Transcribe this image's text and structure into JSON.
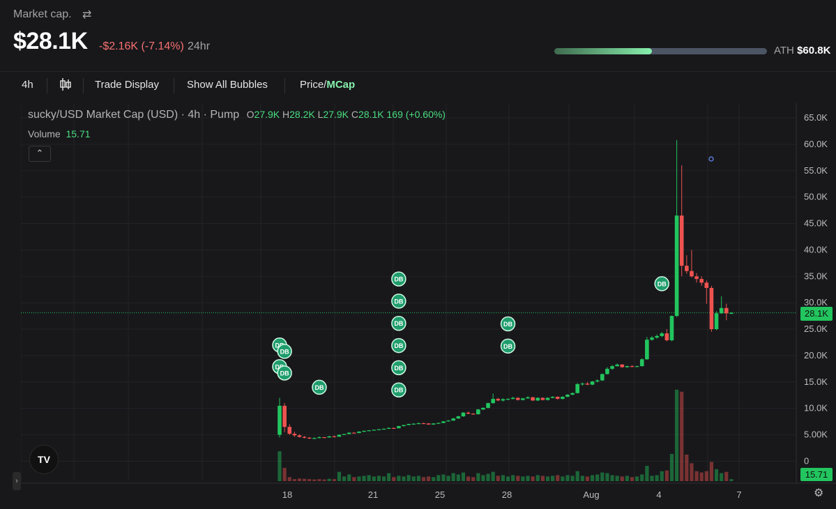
{
  "header": {
    "label": "Market cap.",
    "swap_icon": "swap-arrows-icon",
    "value": "$28.1K",
    "change": "-$2.16K (-7.14%)",
    "period": "24hr",
    "ath_label": "ATH",
    "ath_value": "$60.8K",
    "ath_progress": 0.46
  },
  "toolbar": {
    "interval": "4h",
    "candle_icon": "candlestick-icon",
    "trade_display": "Trade Display",
    "show_bubbles": "Show All Bubbles",
    "price_label": "Price/",
    "mcap_label": "MCap"
  },
  "legend": {
    "symbol": "sucky/USD Market Cap (USD) · 4h · Pump",
    "o_label": "O",
    "o_val": "27.9K",
    "h_label": "H",
    "h_val": "28.2K",
    "l_label": "L",
    "l_val": "27.9K",
    "c_label": "C",
    "c_val": "28.1K",
    "change": "169 (+0.60%)",
    "volume_label": "Volume",
    "volume_val": "15.71"
  },
  "colors": {
    "up": "#22c55e",
    "down": "#ef5350",
    "bubble": "#1f9d6c",
    "background": "#18181b"
  },
  "badges": {
    "price": "28.1K",
    "volume": "15.71"
  },
  "chart_data": {
    "type": "candlestick",
    "ylim": [
      0,
      65000
    ],
    "y_ticks": [
      "65.0K",
      "60.0K",
      "55.0K",
      "50.0K",
      "45.0K",
      "40.0K",
      "35.0K",
      "30.0K",
      "25.0K",
      "20.0K",
      "15.0K",
      "10.0K",
      "5.00K",
      "0"
    ],
    "x_ticks": [
      "18",
      "21",
      "25",
      "28",
      "Aug",
      "4",
      "7"
    ],
    "last_price_line": 28100,
    "candles": [
      [
        0,
        5000,
        12000,
        4500,
        10500
      ],
      [
        1,
        10500,
        11000,
        5500,
        6500
      ],
      [
        2,
        6500,
        7000,
        5000,
        5200
      ],
      [
        3,
        5200,
        5600,
        4600,
        4900
      ],
      [
        4,
        4900,
        5100,
        4500,
        4600
      ],
      [
        5,
        4600,
        4800,
        4300,
        4450
      ],
      [
        6,
        4450,
        4600,
        4200,
        4350
      ],
      [
        7,
        4350,
        4500,
        4200,
        4400
      ],
      [
        8,
        4400,
        4700,
        4300,
        4550
      ],
      [
        9,
        4550,
        4600,
        4400,
        4500
      ],
      [
        10,
        4500,
        4800,
        4450,
        4700
      ],
      [
        11,
        4700,
        4900,
        4600,
        4650
      ],
      [
        12,
        4650,
        5100,
        4600,
        5000
      ],
      [
        13,
        5000,
        5200,
        4950,
        5150
      ],
      [
        14,
        5150,
        5500,
        5100,
        5400
      ],
      [
        15,
        5400,
        5500,
        5300,
        5350
      ],
      [
        16,
        5350,
        5700,
        5300,
        5600
      ],
      [
        17,
        5600,
        5800,
        5500,
        5750
      ],
      [
        18,
        5750,
        5900,
        5700,
        5850
      ],
      [
        19,
        5850,
        6000,
        5800,
        5950
      ],
      [
        20,
        5950,
        6100,
        5900,
        6050
      ],
      [
        21,
        6050,
        6200,
        6000,
        6150
      ],
      [
        22,
        6150,
        6400,
        6100,
        6300
      ],
      [
        23,
        6300,
        6350,
        6200,
        6250
      ],
      [
        24,
        6250,
        6700,
        6200,
        6650
      ],
      [
        25,
        6650,
        6900,
        6600,
        6850
      ],
      [
        26,
        6850,
        7100,
        6800,
        7050
      ],
      [
        27,
        7050,
        7200,
        6950,
        7100
      ],
      [
        28,
        7100,
        7300,
        7000,
        7200
      ],
      [
        29,
        7200,
        7300,
        7100,
        7150
      ],
      [
        30,
        7150,
        7200,
        6900,
        6950
      ],
      [
        31,
        6950,
        7200,
        6900,
        7150
      ],
      [
        32,
        7150,
        7300,
        7100,
        7250
      ],
      [
        33,
        7250,
        7600,
        7200,
        7550
      ],
      [
        34,
        7550,
        7800,
        7500,
        7700
      ],
      [
        35,
        7700,
        8200,
        7650,
        8100
      ],
      [
        36,
        8100,
        8600,
        8000,
        8500
      ],
      [
        37,
        8500,
        9300,
        8400,
        9200
      ],
      [
        38,
        9200,
        9400,
        8900,
        9000
      ],
      [
        39,
        9000,
        9100,
        8800,
        8900
      ],
      [
        40,
        8900,
        9900,
        8850,
        9800
      ],
      [
        41,
        9800,
        10200,
        9700,
        10100
      ],
      [
        42,
        10100,
        11100,
        10000,
        11000
      ],
      [
        43,
        11000,
        12800,
        10900,
        11800
      ],
      [
        44,
        11800,
        12000,
        11400,
        11500
      ],
      [
        45,
        11500,
        11900,
        11300,
        11750
      ],
      [
        46,
        11750,
        11900,
        11600,
        11800
      ],
      [
        47,
        11800,
        12200,
        11700,
        12000
      ],
      [
        48,
        12000,
        12100,
        11500,
        11600
      ],
      [
        49,
        11600,
        12000,
        11500,
        11900
      ],
      [
        50,
        11900,
        12300,
        11800,
        12100
      ],
      [
        51,
        12100,
        12200,
        11400,
        11500
      ],
      [
        52,
        11500,
        12100,
        11400,
        12000
      ],
      [
        53,
        12000,
        12100,
        11500,
        11600
      ],
      [
        54,
        11600,
        12100,
        11500,
        12000
      ],
      [
        55,
        12000,
        12300,
        11900,
        12200
      ],
      [
        56,
        12200,
        12300,
        11700,
        11800
      ],
      [
        57,
        11800,
        12300,
        11700,
        12200
      ],
      [
        58,
        12200,
        12700,
        12100,
        12600
      ],
      [
        59,
        12600,
        13000,
        12500,
        12900
      ],
      [
        60,
        12900,
        14800,
        12800,
        14600
      ],
      [
        61,
        14600,
        14900,
        14300,
        14700
      ],
      [
        62,
        14700,
        15000,
        14400,
        14500
      ],
      [
        63,
        14500,
        15200,
        14400,
        15100
      ],
      [
        64,
        15100,
        15500,
        14900,
        15300
      ],
      [
        65,
        15300,
        16600,
        15200,
        16500
      ],
      [
        66,
        16500,
        17800,
        16400,
        17500
      ],
      [
        67,
        17500,
        18200,
        17300,
        18000
      ],
      [
        68,
        18000,
        18500,
        17900,
        18300
      ],
      [
        69,
        18300,
        18400,
        17700,
        17800
      ],
      [
        70,
        17800,
        18100,
        17700,
        18000
      ],
      [
        71,
        18000,
        18200,
        17800,
        17900
      ],
      [
        72,
        17900,
        18100,
        17800,
        18000
      ],
      [
        73,
        18000,
        19500,
        17900,
        19300
      ],
      [
        74,
        19300,
        23500,
        19200,
        23000
      ],
      [
        75,
        23000,
        23700,
        22800,
        23400
      ],
      [
        76,
        23400,
        24000,
        23200,
        23700
      ],
      [
        77,
        23700,
        24500,
        23500,
        24200
      ],
      [
        78,
        24200,
        25000,
        22700,
        22900
      ],
      [
        79,
        22900,
        27600,
        22700,
        27500
      ],
      [
        80,
        27500,
        60800,
        27300,
        46500
      ],
      [
        81,
        46500,
        56000,
        35000,
        37000
      ],
      [
        82,
        37000,
        39000,
        35500,
        36000
      ],
      [
        83,
        36000,
        40000,
        34800,
        35000
      ],
      [
        84,
        35000,
        35600,
        33800,
        34500
      ],
      [
        85,
        34500,
        35000,
        33200,
        33800
      ],
      [
        86,
        33800,
        34200,
        29800,
        32800
      ],
      [
        87,
        32800,
        33200,
        24500,
        25000
      ],
      [
        88,
        25000,
        28400,
        24800,
        28000
      ],
      [
        89,
        28000,
        31200,
        27900,
        29000
      ],
      [
        90,
        29000,
        29800,
        26700,
        28000
      ],
      [
        91,
        27900,
        28200,
        27900,
        28100
      ]
    ],
    "volumes": [
      [
        0,
        4500,
        1
      ],
      [
        1,
        2000,
        0
      ],
      [
        2,
        600,
        0
      ],
      [
        3,
        300,
        0
      ],
      [
        4,
        400,
        0
      ],
      [
        5,
        350,
        0
      ],
      [
        6,
        300,
        0
      ],
      [
        7,
        250,
        0
      ],
      [
        8,
        300,
        0
      ],
      [
        9,
        250,
        0
      ],
      [
        10,
        350,
        1
      ],
      [
        11,
        300,
        0
      ],
      [
        12,
        1400,
        1
      ],
      [
        13,
        700,
        1
      ],
      [
        14,
        1000,
        1
      ],
      [
        15,
        600,
        0
      ],
      [
        16,
        700,
        1
      ],
      [
        17,
        800,
        1
      ],
      [
        18,
        900,
        1
      ],
      [
        19,
        700,
        1
      ],
      [
        20,
        800,
        1
      ],
      [
        21,
        700,
        1
      ],
      [
        22,
        1200,
        1
      ],
      [
        23,
        600,
        0
      ],
      [
        24,
        800,
        1
      ],
      [
        25,
        700,
        1
      ],
      [
        26,
        900,
        1
      ],
      [
        27,
        700,
        1
      ],
      [
        28,
        800,
        1
      ],
      [
        29,
        600,
        0
      ],
      [
        30,
        700,
        0
      ],
      [
        31,
        600,
        1
      ],
      [
        32,
        900,
        1
      ],
      [
        33,
        1000,
        1
      ],
      [
        34,
        800,
        1
      ],
      [
        35,
        1200,
        1
      ],
      [
        36,
        1000,
        1
      ],
      [
        37,
        1300,
        1
      ],
      [
        38,
        700,
        0
      ],
      [
        39,
        600,
        0
      ],
      [
        40,
        1200,
        1
      ],
      [
        41,
        900,
        1
      ],
      [
        42,
        1100,
        1
      ],
      [
        43,
        1400,
        1
      ],
      [
        44,
        800,
        0
      ],
      [
        45,
        900,
        1
      ],
      [
        46,
        700,
        1
      ],
      [
        47,
        900,
        1
      ],
      [
        48,
        800,
        0
      ],
      [
        49,
        700,
        1
      ],
      [
        50,
        800,
        1
      ],
      [
        51,
        700,
        0
      ],
      [
        52,
        900,
        1
      ],
      [
        53,
        800,
        0
      ],
      [
        54,
        700,
        1
      ],
      [
        55,
        800,
        1
      ],
      [
        56,
        900,
        0
      ],
      [
        57,
        700,
        1
      ],
      [
        58,
        900,
        1
      ],
      [
        59,
        800,
        1
      ],
      [
        60,
        1500,
        1
      ],
      [
        61,
        800,
        1
      ],
      [
        62,
        700,
        0
      ],
      [
        63,
        900,
        1
      ],
      [
        64,
        1000,
        1
      ],
      [
        65,
        1300,
        1
      ],
      [
        66,
        1200,
        1
      ],
      [
        67,
        900,
        1
      ],
      [
        68,
        800,
        1
      ],
      [
        69,
        700,
        0
      ],
      [
        70,
        800,
        1
      ],
      [
        71,
        600,
        0
      ],
      [
        72,
        700,
        1
      ],
      [
        73,
        1000,
        1
      ],
      [
        74,
        2300,
        1
      ],
      [
        75,
        800,
        1
      ],
      [
        76,
        900,
        1
      ],
      [
        77,
        1500,
        1
      ],
      [
        78,
        1600,
        0
      ],
      [
        79,
        4100,
        1
      ],
      [
        80,
        13800,
        1
      ],
      [
        81,
        13500,
        0
      ],
      [
        82,
        4000,
        0
      ],
      [
        83,
        2700,
        0
      ],
      [
        84,
        1500,
        0
      ],
      [
        85,
        1300,
        0
      ],
      [
        86,
        1500,
        0
      ],
      [
        87,
        2900,
        0
      ],
      [
        88,
        1800,
        1
      ],
      [
        89,
        1200,
        1
      ],
      [
        90,
        1400,
        0
      ],
      [
        91,
        300,
        1
      ]
    ],
    "bubbles": [
      {
        "label": "DB",
        "i": 0,
        "v": 22000
      },
      {
        "label": "DB",
        "i": 1,
        "v": 20800
      },
      {
        "label": "DB",
        "i": 0,
        "v": 17900
      },
      {
        "label": "DB",
        "i": 1,
        "v": 16700
      },
      {
        "label": "DB",
        "i": 8,
        "v": 14000
      },
      {
        "label": "DB",
        "i": 24,
        "v": 34500
      },
      {
        "label": "DB",
        "i": 24,
        "v": 30300
      },
      {
        "label": "DB",
        "i": 24,
        "v": 26100
      },
      {
        "label": "DB",
        "i": 24,
        "v": 21900
      },
      {
        "label": "DB",
        "i": 24,
        "v": 17700
      },
      {
        "label": "DB",
        "i": 24,
        "v": 13500
      },
      {
        "label": "DB",
        "i": 46,
        "v": 26000
      },
      {
        "label": "DB",
        "i": 46,
        "v": 21800
      },
      {
        "label": "DB",
        "i": 77,
        "v": 33600
      }
    ]
  }
}
